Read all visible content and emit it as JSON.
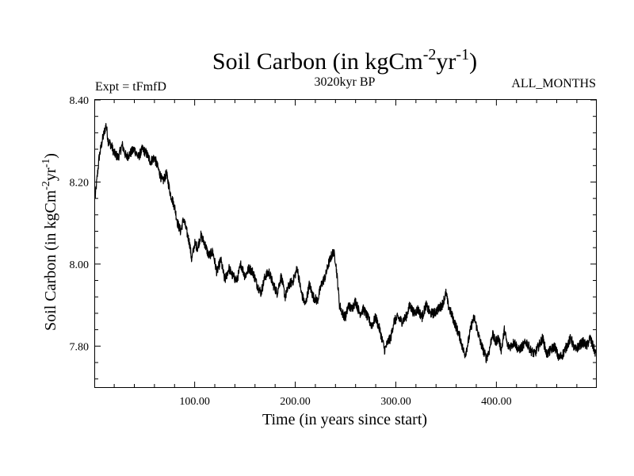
{
  "chart_data": {
    "type": "line",
    "title": "Soil Carbon (in kgCm",
    "title_sup1": "-2",
    "title_mid": "yr",
    "title_sup2": "-1",
    "title_end": ")",
    "subtitle_left": "Expt = tFmfD",
    "subtitle_center": "3020kyr BP",
    "subtitle_right": "ALL_MONTHS",
    "xlabel": "Time (in years since start)",
    "ylabel": "Soil Carbon (in kgCm",
    "ylabel_sup1": "-2",
    "ylabel_mid": "yr",
    "ylabel_sup2": "-1",
    "ylabel_end": ")",
    "xlim": [
      1,
      499
    ],
    "ylim": [
      7.7,
      8.4
    ],
    "xticks": [
      100,
      200,
      300,
      400
    ],
    "xtick_labels": [
      "100.00",
      "200.00",
      "300.00",
      "400.00"
    ],
    "yticks": [
      7.8,
      8.0,
      8.2,
      8.4
    ],
    "ytick_labels": [
      "7.80",
      "8.00",
      "8.20",
      "8.40"
    ],
    "series": [
      {
        "name": "Soil Carbon",
        "color": "#000000",
        "x": [
          1,
          3,
          5,
          8,
          10,
          12,
          14,
          17,
          20,
          24,
          28,
          32,
          36,
          40,
          44,
          48,
          52,
          56,
          60,
          64,
          68,
          72,
          76,
          80,
          83,
          86,
          89,
          92,
          95,
          97,
          100,
          103,
          106,
          110,
          114,
          118,
          122,
          126,
          130,
          134,
          138,
          142,
          146,
          150,
          154,
          158,
          162,
          166,
          170,
          174,
          178,
          182,
          186,
          190,
          194,
          198,
          202,
          206,
          210,
          214,
          218,
          222,
          226,
          230,
          233,
          236,
          238,
          240,
          242,
          244,
          247,
          250,
          253,
          256,
          260,
          264,
          268,
          272,
          276,
          280,
          284,
          287,
          289,
          292,
          295,
          298,
          302,
          306,
          310,
          314,
          318,
          322,
          326,
          330,
          334,
          338,
          342,
          346,
          350,
          352,
          355,
          358,
          361,
          364,
          367,
          369,
          372,
          375,
          378,
          381,
          384,
          387,
          390,
          393,
          396,
          399,
          402,
          405,
          408,
          411,
          414,
          418,
          422,
          426,
          430,
          434,
          438,
          442,
          446,
          450,
          454,
          458,
          462,
          466,
          470,
          474,
          478,
          482,
          486,
          490,
          493,
          496,
          499
        ],
        "values": [
          8.16,
          8.21,
          8.26,
          8.3,
          8.32,
          8.34,
          8.3,
          8.29,
          8.27,
          8.26,
          8.29,
          8.26,
          8.27,
          8.28,
          8.26,
          8.28,
          8.27,
          8.25,
          8.26,
          8.23,
          8.2,
          8.22,
          8.17,
          8.14,
          8.1,
          8.08,
          8.11,
          8.08,
          8.05,
          8.01,
          8.05,
          8.04,
          8.07,
          8.05,
          8.02,
          8.03,
          7.98,
          8.01,
          7.96,
          7.99,
          7.97,
          7.96,
          8.0,
          7.97,
          7.99,
          7.98,
          7.95,
          7.93,
          7.97,
          7.98,
          7.95,
          7.93,
          7.97,
          7.92,
          7.95,
          7.96,
          7.99,
          7.93,
          7.9,
          7.95,
          7.92,
          7.91,
          7.95,
          7.97,
          8.0,
          8.02,
          8.03,
          8.01,
          7.96,
          7.9,
          7.88,
          7.87,
          7.9,
          7.89,
          7.91,
          7.88,
          7.89,
          7.87,
          7.85,
          7.87,
          7.84,
          7.81,
          7.79,
          7.81,
          7.82,
          7.86,
          7.87,
          7.86,
          7.87,
          7.9,
          7.88,
          7.89,
          7.87,
          7.9,
          7.88,
          7.88,
          7.89,
          7.9,
          7.93,
          7.9,
          7.88,
          7.86,
          7.84,
          7.82,
          7.79,
          7.78,
          7.81,
          7.85,
          7.87,
          7.84,
          7.81,
          7.79,
          7.77,
          7.79,
          7.83,
          7.81,
          7.82,
          7.79,
          7.84,
          7.8,
          7.8,
          7.81,
          7.79,
          7.8,
          7.81,
          7.79,
          7.78,
          7.8,
          7.82,
          7.78,
          7.79,
          7.8,
          7.77,
          7.78,
          7.8,
          7.82,
          7.79,
          7.8,
          7.81,
          7.8,
          7.82,
          7.8,
          7.78
        ]
      }
    ],
    "grid": false,
    "noise_amplitude": 0.012
  }
}
